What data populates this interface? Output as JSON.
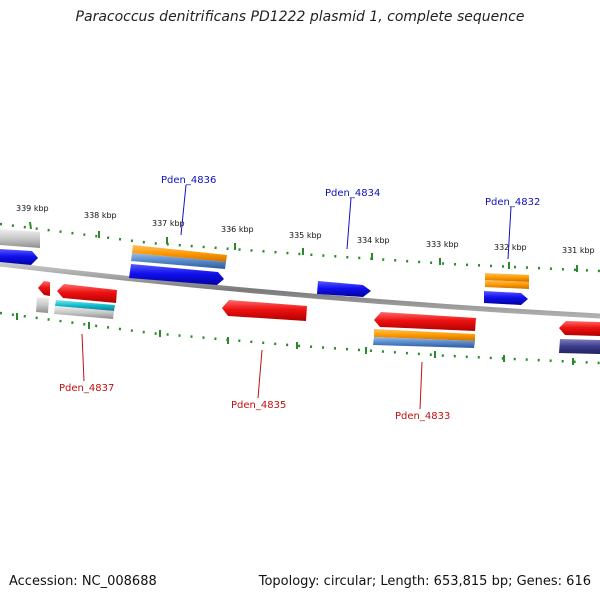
{
  "title": "Paracoccus denitrificans PD1222 plasmid 1, complete sequence",
  "footer": {
    "accession": "Accession: NC_008688",
    "summary": "Topology: circular; Length: 653,815 bp; Genes: 616"
  },
  "colors": {
    "background": "#ffffff",
    "backbone": "#8c8c8c",
    "tick": "#2a8a2a",
    "forward_label": "#1010c0",
    "reverse_label": "#c01010",
    "red": "#ee1111",
    "blue": "#1111ee",
    "orange": "#ff9900",
    "steel": "#5588cc",
    "cyan": "#11bbcc",
    "gray": "#c8c8c8",
    "navy": "#3a3a8a"
  },
  "scale_labels": [
    "339 kbp",
    "338 kbp",
    "337 kbp",
    "336 kbp",
    "335 kbp",
    "334 kbp",
    "333 kbp",
    "332 kbp",
    "331 kbp"
  ],
  "gene_labels": {
    "forward": [
      "Pden_4836",
      "Pden_4834",
      "Pden_4832"
    ],
    "reverse": [
      "Pden_4837",
      "Pden_4835",
      "Pden_4833"
    ]
  }
}
